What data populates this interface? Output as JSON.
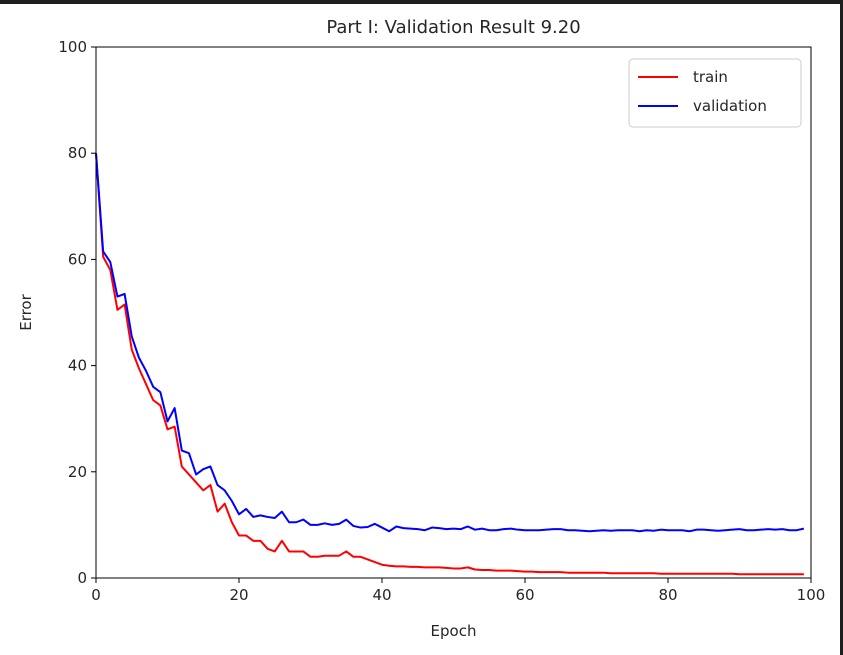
{
  "chart_data": {
    "type": "line",
    "title": "Part I: Validation Result 9.20",
    "xlabel": "Epoch",
    "ylabel": "Error",
    "xlim": [
      0,
      100
    ],
    "ylim": [
      0,
      100
    ],
    "xticks": [
      "0",
      "20",
      "40",
      "60",
      "80",
      "100"
    ],
    "yticks": [
      "0",
      "20",
      "40",
      "60",
      "80",
      "100"
    ],
    "grid": false,
    "legend_position": "top-right",
    "x": [
      0,
      1,
      2,
      3,
      4,
      5,
      6,
      7,
      8,
      9,
      10,
      11,
      12,
      13,
      14,
      15,
      16,
      17,
      18,
      19,
      20,
      21,
      22,
      23,
      24,
      25,
      26,
      27,
      28,
      29,
      30,
      31,
      32,
      33,
      34,
      35,
      36,
      37,
      38,
      39,
      40,
      41,
      42,
      43,
      44,
      45,
      46,
      47,
      48,
      49,
      50,
      51,
      52,
      53,
      54,
      55,
      56,
      57,
      58,
      59,
      60,
      61,
      62,
      63,
      64,
      65,
      66,
      67,
      68,
      69,
      70,
      71,
      72,
      73,
      74,
      75,
      76,
      77,
      78,
      79,
      80,
      81,
      82,
      83,
      84,
      85,
      86,
      87,
      88,
      89,
      90,
      91,
      92,
      93,
      94,
      95,
      96,
      97,
      98,
      99
    ],
    "series": [
      {
        "name": "train",
        "color": "#ff0000",
        "values": [
          80,
          60.5,
          58,
          50.5,
          51.5,
          43,
          39.5,
          36.5,
          33.5,
          32.5,
          28,
          28.5,
          21,
          19.5,
          18,
          16.5,
          17.5,
          12.5,
          14,
          10.5,
          8,
          8,
          7,
          7,
          5.5,
          5,
          7,
          5,
          5,
          5,
          4,
          4,
          4.2,
          4.2,
          4.2,
          5,
          4,
          4,
          3.5,
          3,
          2.5,
          2.3,
          2.2,
          2.2,
          2.1,
          2.1,
          2,
          2,
          2,
          1.9,
          1.8,
          1.8,
          2,
          1.6,
          1.5,
          1.5,
          1.4,
          1.4,
          1.4,
          1.3,
          1.2,
          1.2,
          1.1,
          1.1,
          1.1,
          1.1,
          1,
          1,
          1,
          1,
          1,
          1,
          0.9,
          0.9,
          0.9,
          0.9,
          0.9,
          0.9,
          0.9,
          0.8,
          0.8,
          0.8,
          0.8,
          0.8,
          0.8,
          0.8,
          0.8,
          0.8,
          0.8,
          0.8,
          0.7,
          0.7,
          0.7,
          0.7,
          0.7,
          0.7,
          0.7,
          0.7,
          0.7,
          0.7
        ]
      },
      {
        "name": "validation",
        "color": "#0000ff",
        "values": [
          80,
          61.5,
          59.5,
          53,
          53.5,
          45.5,
          41.5,
          39,
          36,
          35,
          29.5,
          32,
          24,
          23.5,
          19.5,
          20.5,
          21,
          17.5,
          16.5,
          14.5,
          12,
          13,
          11.5,
          11.8,
          11.5,
          11.3,
          12.5,
          10.5,
          10.5,
          11,
          10,
          10,
          10.3,
          10,
          10.2,
          11,
          9.8,
          9.5,
          9.6,
          10.2,
          9.5,
          8.8,
          9.7,
          9.4,
          9.3,
          9.2,
          9,
          9.5,
          9.4,
          9.2,
          9.3,
          9.2,
          9.7,
          9.1,
          9.3,
          9,
          9,
          9.2,
          9.3,
          9.1,
          9,
          9,
          9,
          9.1,
          9.2,
          9.2,
          9,
          9,
          8.9,
          8.8,
          8.9,
          9,
          8.9,
          9,
          9,
          9,
          8.8,
          9,
          8.9,
          9.1,
          9,
          9,
          9,
          8.8,
          9.1,
          9.1,
          9,
          8.9,
          9,
          9.1,
          9.2,
          9,
          9,
          9.1,
          9.2,
          9.1,
          9.2,
          9,
          9,
          9.3
        ]
      }
    ]
  }
}
